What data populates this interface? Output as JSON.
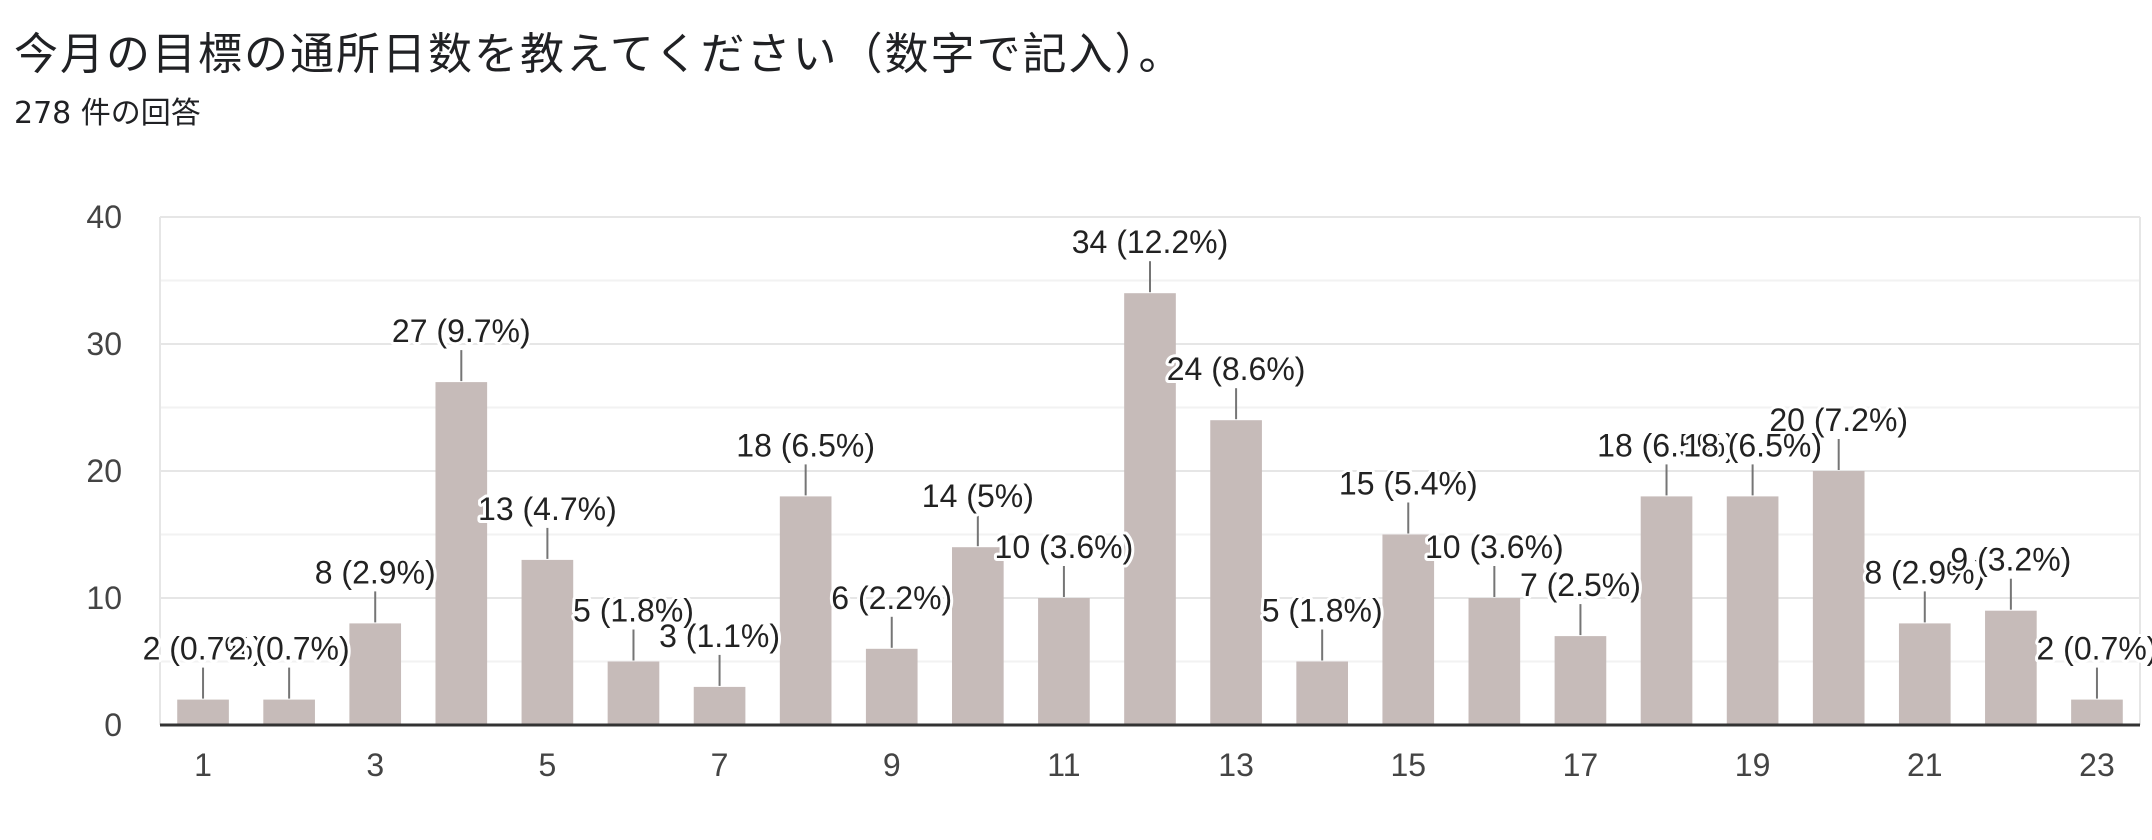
{
  "title": "今月の目標の通所日数を教えてください（数字で記入）。",
  "subtitle": "278 件の回答",
  "chart_data": {
    "type": "bar",
    "title": "今月の目標の通所日数を教えてください（数字で記入）。",
    "xlabel": "",
    "ylabel": "",
    "categories": [
      "1",
      "2",
      "3",
      "4",
      "5",
      "6",
      "7",
      "8",
      "9",
      "10",
      "11",
      "12",
      "13",
      "14",
      "15",
      "16",
      "17",
      "18",
      "19",
      "20",
      "21",
      "22",
      "23"
    ],
    "values": [
      2,
      2,
      8,
      27,
      13,
      5,
      3,
      18,
      6,
      14,
      10,
      34,
      24,
      5,
      15,
      10,
      7,
      18,
      18,
      20,
      8,
      9,
      2
    ],
    "data_labels": [
      "2 (0.7%)",
      "2 (0.7%)",
      "8 (2.9%)",
      "27 (9.7%)",
      "13 (4.7%)",
      "5 (1.8%)",
      "3 (1.1%)",
      "18 (6.5%)",
      "6 (2.2%)",
      "14 (5%)",
      "10 (3.6%)",
      "34 (12.2%)",
      "24 (8.6%)",
      "5 (1.8%)",
      "15 (5.4%)",
      "10 (3.6%)",
      "7 (2.5%)",
      "18 (6.5%)",
      "18 (6.5%)",
      "20 (7.2%)",
      "8 (2.9%)",
      "9 (3.2%)",
      "2 (0.7%)"
    ],
    "x_tick_labels": [
      "1",
      "3",
      "5",
      "7",
      "9",
      "11",
      "13",
      "15",
      "17",
      "19",
      "21",
      "23"
    ],
    "y_ticks": [
      0,
      10,
      20,
      30,
      40
    ],
    "ylim": [
      0,
      40
    ],
    "grid": true,
    "legend": "none",
    "bar_color": "#c6bbb9"
  }
}
